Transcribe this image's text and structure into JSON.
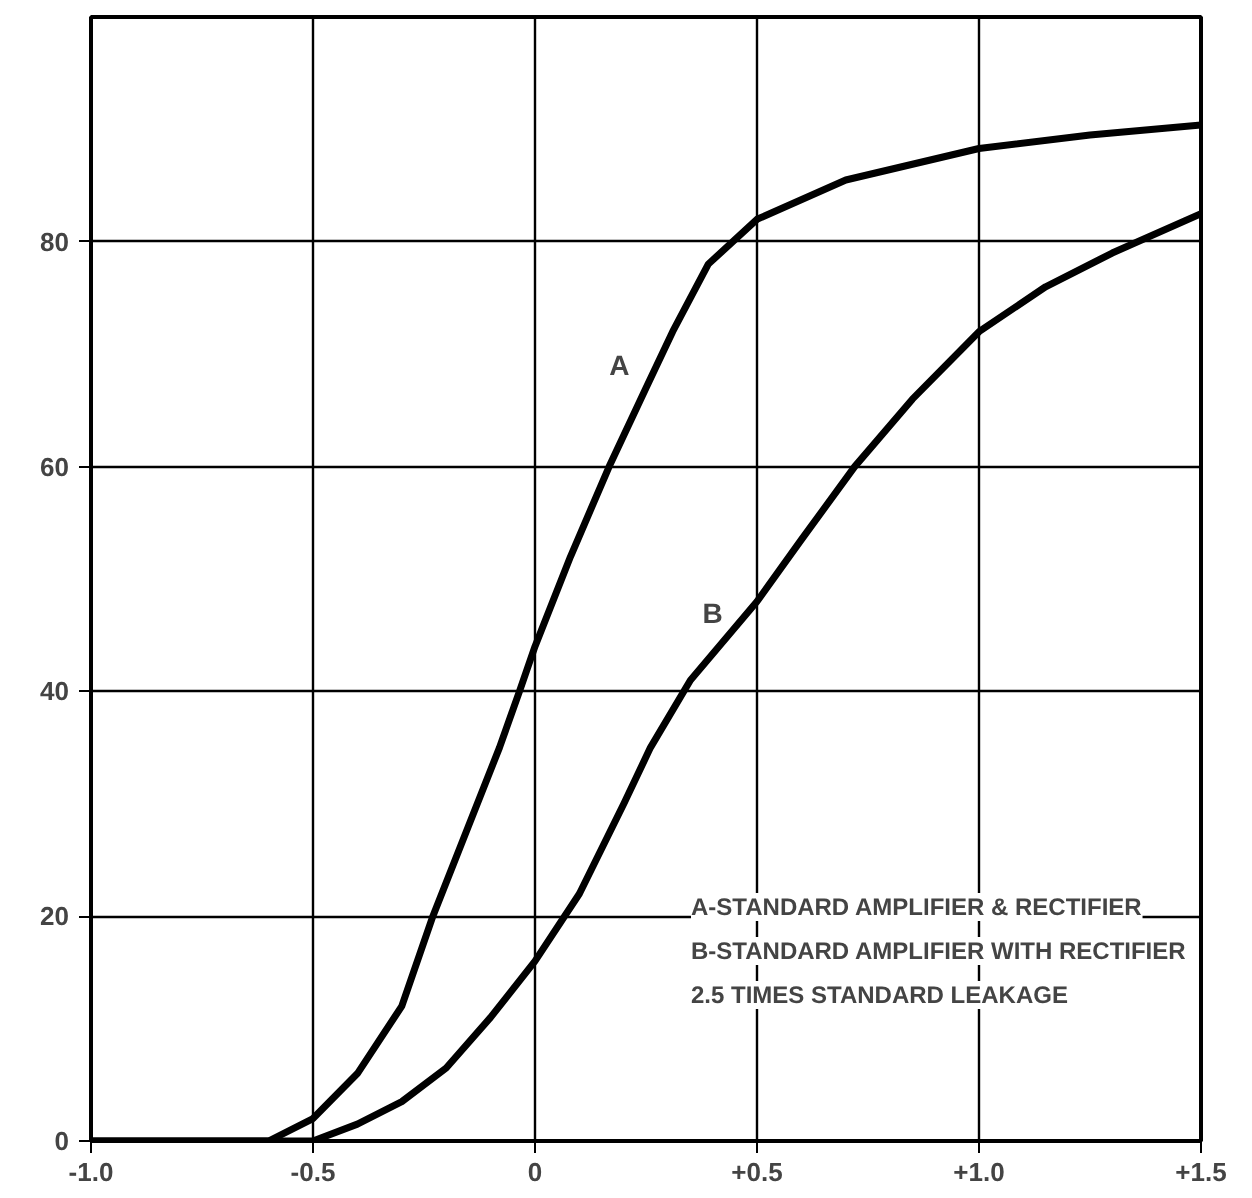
{
  "chart_data": {
    "type": "line",
    "xlim": [
      -1.0,
      1.5
    ],
    "ylim": [
      0,
      100
    ],
    "xticks": [
      {
        "value": -1.0,
        "label": "-1.0"
      },
      {
        "value": -0.5,
        "label": "-0.5"
      },
      0,
      {
        "value": 0.5,
        "label": "+0.5"
      },
      {
        "value": 1.0,
        "label": "+1.0"
      },
      {
        "value": 1.5,
        "label": "+1.5"
      }
    ],
    "yticks": [
      0,
      20,
      40,
      60,
      80
    ],
    "grid": true,
    "line_style": "solid",
    "marker": "none",
    "series": [
      {
        "color": "#000000",
        "x": [
          -1.0,
          -0.6,
          -0.5,
          -0.4,
          -0.3,
          -0.23,
          -0.15,
          -0.08,
          -0.035,
          0,
          0.08,
          0.167,
          0.25,
          0.31,
          0.39,
          0.5,
          0.7,
          1.0,
          1.25,
          1.5
        ],
        "values": [
          0,
          0,
          2,
          6,
          12,
          20,
          28,
          35,
          40,
          44,
          52,
          60,
          67,
          72,
          78,
          82,
          85.5,
          88.3,
          89.5,
          90.4
        ]
      },
      {
        "color": "#000000",
        "x": [
          -1.0,
          -0.5,
          -0.4,
          -0.3,
          -0.2,
          -0.1,
          0,
          0.1,
          0.2,
          0.26,
          0.35,
          0.5,
          0.6,
          0.72,
          0.85,
          1.0,
          1.15,
          1.3,
          1.5
        ],
        "values": [
          0,
          0,
          1.5,
          3.5,
          6.5,
          11,
          16,
          22,
          30,
          35,
          41,
          48,
          53.5,
          60,
          66,
          72,
          76,
          79,
          82.5
        ]
      }
    ],
    "annotations": [
      {
        "text": "A",
        "x": 0.19,
        "y": 69
      },
      {
        "text": "B",
        "x": 0.4,
        "y": 47
      },
      "A-STANDARD AMPLIFIER & RECTIFIER",
      "B-STANDARD AMPLIFIER WITH RECTIFIER",
      "2.5 TIMES STANDARD LEAKAGE"
    ]
  }
}
